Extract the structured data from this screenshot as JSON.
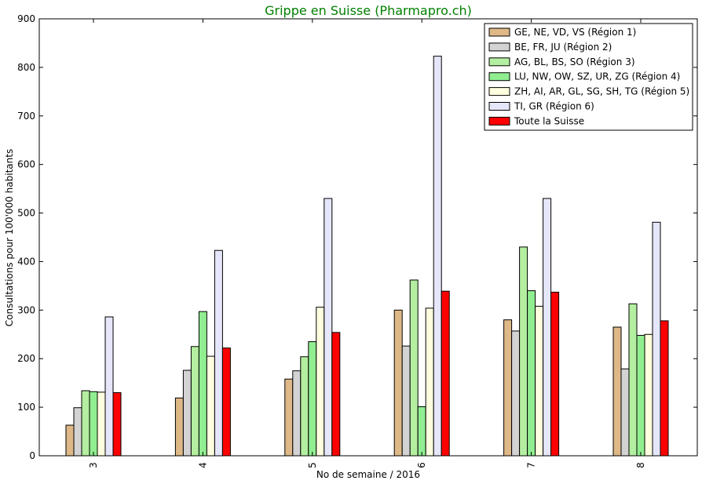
{
  "chart_data": {
    "type": "bar",
    "title": "Grippe en Suisse (Pharmapro.ch)",
    "title_color": "#008000",
    "xlabel": "No de semaine / 2016",
    "ylabel": "Consultations pour 100'000 habitants",
    "categories": [
      "3",
      "4",
      "5",
      "6",
      "7",
      "8"
    ],
    "ylim": [
      0,
      900
    ],
    "yticks": [
      0,
      100,
      200,
      300,
      400,
      500,
      600,
      700,
      800,
      900
    ],
    "legend_position": "top-right",
    "grid": false,
    "series": [
      {
        "name": "GE, NE, VD, VS (Région 1)",
        "color": "#DEB887",
        "values": [
          63,
          119,
          158,
          300,
          280,
          265
        ]
      },
      {
        "name": "BE, FR, JU (Région 2)",
        "color": "#D3D3D3",
        "values": [
          99,
          176,
          175,
          226,
          257,
          179
        ]
      },
      {
        "name": "AG, BL, BS, SO (Région 3)",
        "color": "#B4EEA0",
        "values": [
          134,
          225,
          204,
          362,
          430,
          313
        ]
      },
      {
        "name": "LU, NW, OW, SZ, UR, ZG (Région 4)",
        "color": "#90EE90",
        "values": [
          132,
          297,
          235,
          101,
          340,
          248
        ]
      },
      {
        "name": "ZH, AI, AR, GL, SG, SH, TG (Région 5)",
        "color": "#FFFFE0",
        "values": [
          131,
          205,
          306,
          304,
          308,
          250
        ]
      },
      {
        "name": "TI, GR (Région 6)",
        "color": "#E6E6FA",
        "values": [
          286,
          423,
          530,
          823,
          530,
          481
        ]
      },
      {
        "name": "Toute la Suisse",
        "color": "#FF0000",
        "values": [
          130,
          222,
          254,
          339,
          337,
          278
        ]
      }
    ]
  }
}
